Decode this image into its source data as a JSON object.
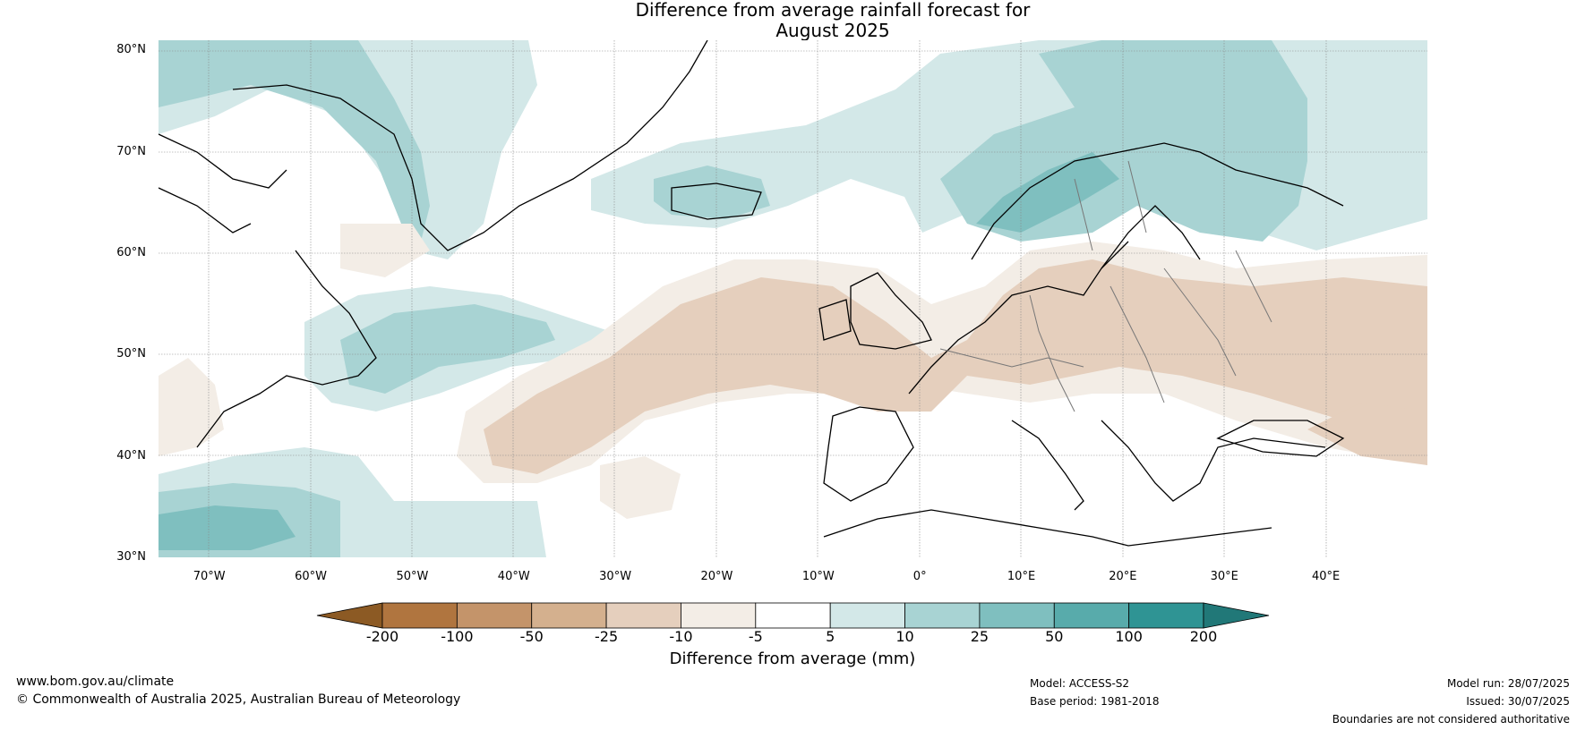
{
  "title_line1": "Difference from average rainfall forecast for",
  "title_line2": "August 2025",
  "map": {
    "lat_labels": [
      "80°N",
      "70°N",
      "60°N",
      "50°N",
      "40°N",
      "30°N"
    ],
    "lat_values": [
      80,
      70,
      60,
      50,
      40,
      30
    ],
    "lon_labels": [
      "70°W",
      "60°W",
      "50°W",
      "40°W",
      "30°W",
      "20°W",
      "10°W",
      "0°",
      "10°E",
      "20°E",
      "30°E",
      "40°E"
    ],
    "lon_values": [
      -70,
      -60,
      -50,
      -40,
      -30,
      -20,
      -10,
      0,
      10,
      20,
      30,
      40
    ],
    "lon_range": [
      -75,
      50
    ],
    "lat_range": [
      30,
      81
    ]
  },
  "colorbar": {
    "tick_labels": [
      "-200",
      "-100",
      "-50",
      "-25",
      "-10",
      "-5",
      "5",
      "10",
      "25",
      "50",
      "100",
      "200"
    ],
    "colors": [
      "#8c5a24",
      "#b0753f",
      "#c4946a",
      "#d4b08e",
      "#e5cfbd",
      "#f3ede6",
      "#ffffff",
      "#d3e8e8",
      "#a8d3d3",
      "#7fbfbf",
      "#58abab",
      "#2f9494",
      "#217878"
    ],
    "label": "Difference from average (mm)"
  },
  "footer": {
    "website": "www.bom.gov.au/climate",
    "copyright": "© Commonwealth of Australia 2025, Australian Bureau of Meteorology",
    "model": "Model: ACCESS-S2",
    "base_period": "Base period: 1981-2018",
    "model_run": "Model run: 28/07/2025",
    "issued": "Issued: 30/07/2025",
    "disclaimer": "Boundaries are not considered authoritative"
  }
}
